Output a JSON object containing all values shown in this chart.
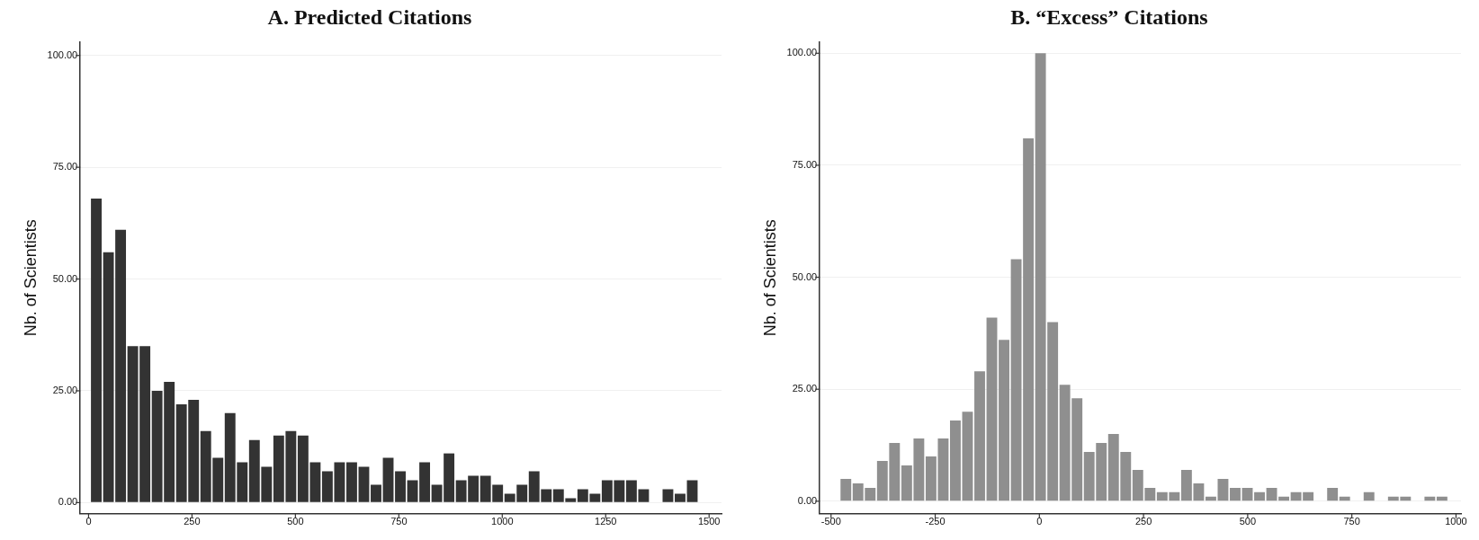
{
  "chart_data": [
    {
      "type": "histogram",
      "title": "A. Predicted Citations",
      "ylabel": "Nb. of Scientists",
      "color": "#333333",
      "bins": [
        4,
        33.4,
        62.8,
        92.2,
        121.6,
        151,
        180.4,
        209.8,
        239.2,
        268.6,
        298,
        327.4,
        356.8,
        386.2,
        415.6,
        445,
        474.4,
        503.8,
        533.2,
        562.6,
        592,
        621.4,
        650.8,
        680.2,
        709.6,
        739,
        768.4,
        797.8,
        827.2,
        856.6,
        886,
        915.4,
        944.8,
        974.2,
        1003.6,
        1033,
        1062.4,
        1091.8,
        1121.2,
        1150.6,
        1180,
        1209.4,
        1238.8,
        1268.2,
        1297.6,
        1327,
        1356.4,
        1385.8,
        1415.2,
        1444.6,
        1474
      ],
      "values": [
        68,
        56,
        61,
        35,
        35,
        25,
        27,
        22,
        23,
        16,
        10,
        20,
        9,
        14,
        8,
        15,
        16,
        15,
        9,
        7,
        9,
        9,
        8,
        4,
        10,
        7,
        5,
        9,
        4,
        11,
        5,
        6,
        6,
        4,
        2,
        4,
        7,
        3,
        3,
        1,
        3,
        2,
        5,
        5,
        5,
        3,
        0,
        3,
        2,
        5
      ],
      "xlim": [
        -20,
        1530
      ],
      "xticks": [
        0,
        250,
        500,
        750,
        1000,
        1250,
        1500
      ],
      "ylim": [
        -2.5,
        103
      ],
      "yticks": [
        {
          "value": 0,
          "label": "0.00"
        },
        {
          "value": 25,
          "label": "25.00"
        },
        {
          "value": 50,
          "label": "50.00"
        },
        {
          "value": 75,
          "label": "75.00"
        },
        {
          "value": 100,
          "label": "100.00"
        }
      ],
      "grid": "y"
    },
    {
      "type": "histogram",
      "title": "B. “Excess” Citations",
      "ylabel": "Nb. of Scientists",
      "color": "#8f8f8f",
      "bins": [
        -479,
        -449.8,
        -420.6,
        -391.4,
        -362.2,
        -333,
        -303.8,
        -274.6,
        -245.4,
        -216.2,
        -187,
        -157.8,
        -128.6,
        -99.4,
        -70.2,
        -41,
        -11.8,
        17.4,
        46.6,
        75.8,
        105,
        134.2,
        163.4,
        192.6,
        221.8,
        251,
        280.2,
        309.4,
        338.6,
        367.8,
        397,
        426.2,
        455.4,
        484.6,
        513.8,
        543,
        572.2,
        601.4,
        630.6,
        659.8,
        689,
        718.2,
        747.4,
        776.6,
        805.8,
        835,
        864.2,
        893.4,
        922.6,
        951.8,
        981
      ],
      "values": [
        5,
        4,
        3,
        9,
        13,
        8,
        14,
        10,
        14,
        18,
        20,
        29,
        41,
        36,
        54,
        81,
        100,
        40,
        26,
        23,
        11,
        13,
        15,
        11,
        7,
        3,
        2,
        2,
        7,
        4,
        1,
        5,
        3,
        3,
        2,
        3,
        1,
        2,
        2,
        0,
        3,
        1,
        0,
        2,
        0,
        1,
        1,
        0,
        1,
        1
      ],
      "xlim": [
        -527,
        1012
      ],
      "xticks": [
        -500,
        -250,
        0,
        250,
        500,
        750,
        1000
      ],
      "ylim": [
        -2.8,
        102.5
      ],
      "yticks": [
        {
          "value": 0,
          "label": "0.00"
        },
        {
          "value": 25,
          "label": "25.00"
        },
        {
          "value": 50,
          "label": "50.00"
        },
        {
          "value": 75,
          "label": "75.00"
        },
        {
          "value": 100,
          "label": "100.00"
        }
      ],
      "grid": "y"
    }
  ]
}
